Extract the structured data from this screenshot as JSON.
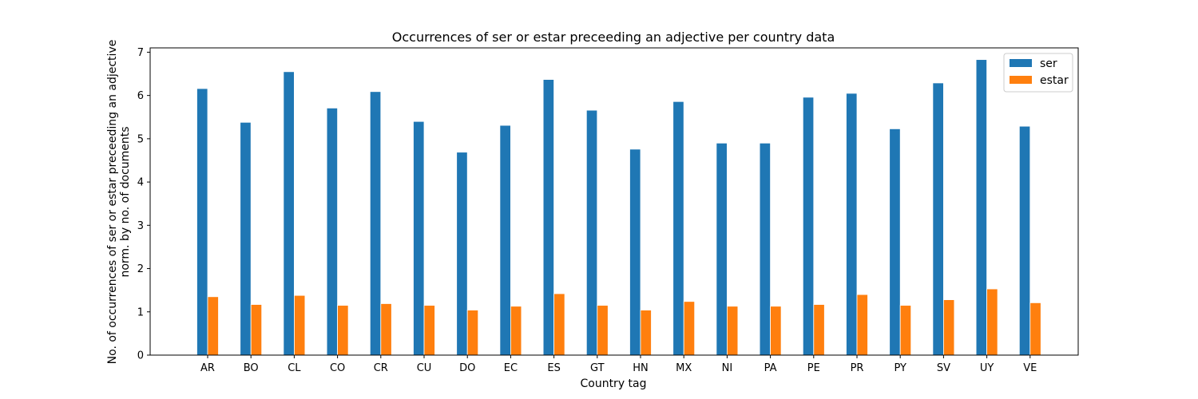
{
  "chart_data": {
    "type": "bar",
    "title": "Occurrences of ser or estar preceeding an adjective per country data",
    "xlabel": "Country tag",
    "ylabel_line1": "No. of occurrences of ser or estar preceeding an adjective",
    "ylabel_line2": "norm. by no. of documents",
    "ylim": [
      0,
      7.1
    ],
    "yticks": [
      0,
      1,
      2,
      3,
      4,
      5,
      6,
      7
    ],
    "grid": false,
    "legend_position": "top-right",
    "categories": [
      "AR",
      "BO",
      "CL",
      "CO",
      "CR",
      "CU",
      "DO",
      "EC",
      "ES",
      "GT",
      "HN",
      "MX",
      "NI",
      "PA",
      "PE",
      "PR",
      "PY",
      "SV",
      "UY",
      "VE"
    ],
    "series": [
      {
        "name": "ser",
        "color": "#1f77b4",
        "values": [
          6.16,
          5.38,
          6.55,
          5.71,
          6.09,
          5.4,
          4.69,
          5.31,
          6.37,
          5.66,
          4.76,
          5.86,
          4.9,
          4.9,
          5.96,
          6.05,
          5.23,
          6.29,
          6.83,
          5.29
        ]
      },
      {
        "name": "estar",
        "color": "#ff7f0e",
        "values": [
          1.35,
          1.17,
          1.38,
          1.15,
          1.19,
          1.15,
          1.04,
          1.13,
          1.42,
          1.15,
          1.04,
          1.24,
          1.13,
          1.13,
          1.17,
          1.4,
          1.15,
          1.28,
          1.53,
          1.21
        ]
      }
    ]
  }
}
